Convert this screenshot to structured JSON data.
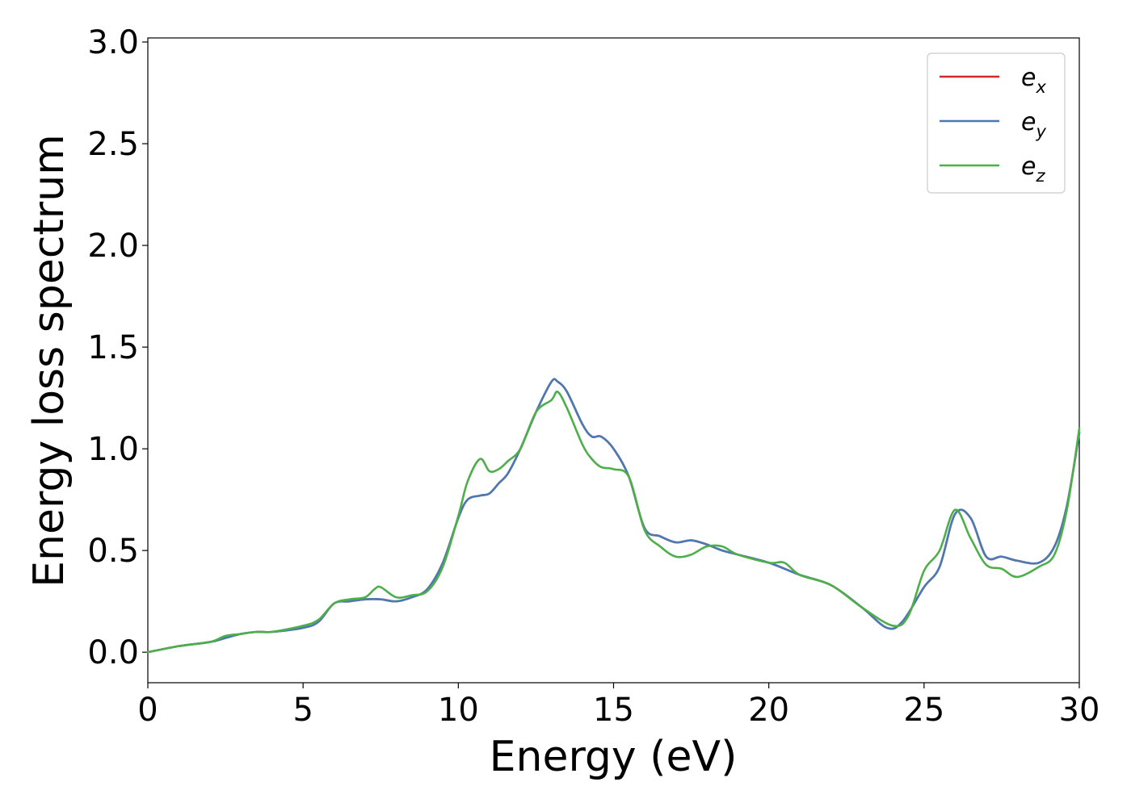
{
  "chart_data": {
    "type": "line",
    "title": "",
    "xlabel": "Energy (eV)",
    "ylabel": "Energy loss spectrum",
    "xlim": [
      0,
      30
    ],
    "ylim": [
      -0.15,
      3.02
    ],
    "xticks": [
      "0",
      "5",
      "10",
      "15",
      "20",
      "25",
      "30"
    ],
    "yticks": [
      "0.0",
      "0.5",
      "1.0",
      "1.5",
      "2.0",
      "2.5",
      "3.0"
    ],
    "grid": false,
    "legend_position": "top-right",
    "series": [
      {
        "name": "e_x",
        "legend_base": "e",
        "legend_sub": "x",
        "color": "#d62728",
        "x": [
          0,
          1,
          2,
          2.5,
          3,
          3.5,
          4,
          5,
          5.5,
          6,
          6.5,
          7,
          7.5,
          8,
          8.5,
          9,
          9.5,
          10,
          10.3,
          10.7,
          11,
          11.3,
          11.6,
          12,
          12.5,
          13,
          13.2,
          13.5,
          14,
          14.3,
          14.6,
          15,
          15.5,
          16,
          16.5,
          17,
          17.5,
          18,
          18.5,
          19,
          20,
          21,
          22,
          23,
          23.8,
          24.3,
          25,
          25.5,
          26,
          26.5,
          27,
          27.5,
          28,
          28.7,
          29.2,
          29.6,
          30
        ],
        "y": [
          0,
          0.03,
          0.05,
          0.07,
          0.09,
          0.1,
          0.1,
          0.12,
          0.15,
          0.24,
          0.25,
          0.26,
          0.26,
          0.25,
          0.27,
          0.31,
          0.44,
          0.66,
          0.75,
          0.77,
          0.78,
          0.83,
          0.88,
          1.0,
          1.18,
          1.33,
          1.33,
          1.28,
          1.12,
          1.06,
          1.06,
          1.0,
          0.86,
          0.61,
          0.57,
          0.54,
          0.55,
          0.53,
          0.5,
          0.48,
          0.44,
          0.38,
          0.33,
          0.22,
          0.12,
          0.15,
          0.32,
          0.42,
          0.68,
          0.66,
          0.47,
          0.47,
          0.45,
          0.44,
          0.52,
          0.72,
          1.08
        ]
      },
      {
        "name": "e_y",
        "legend_base": "e",
        "legend_sub": "y",
        "color": "#4a7ab5",
        "x": [
          0,
          1,
          2,
          2.5,
          3,
          3.5,
          4,
          5,
          5.5,
          6,
          6.5,
          7,
          7.5,
          8,
          8.5,
          9,
          9.5,
          10,
          10.3,
          10.7,
          11,
          11.3,
          11.6,
          12,
          12.5,
          13,
          13.2,
          13.5,
          14,
          14.3,
          14.6,
          15,
          15.5,
          16,
          16.5,
          17,
          17.5,
          18,
          18.5,
          19,
          20,
          21,
          22,
          23,
          23.8,
          24.3,
          25,
          25.5,
          26,
          26.5,
          27,
          27.5,
          28,
          28.7,
          29.2,
          29.6,
          30
        ],
        "y": [
          0,
          0.03,
          0.05,
          0.07,
          0.09,
          0.1,
          0.1,
          0.12,
          0.15,
          0.24,
          0.25,
          0.26,
          0.26,
          0.25,
          0.27,
          0.31,
          0.44,
          0.66,
          0.75,
          0.77,
          0.78,
          0.83,
          0.88,
          1.0,
          1.18,
          1.33,
          1.33,
          1.28,
          1.12,
          1.06,
          1.06,
          1.0,
          0.86,
          0.61,
          0.57,
          0.54,
          0.55,
          0.53,
          0.5,
          0.48,
          0.44,
          0.38,
          0.33,
          0.22,
          0.12,
          0.15,
          0.32,
          0.42,
          0.68,
          0.66,
          0.47,
          0.47,
          0.45,
          0.44,
          0.52,
          0.72,
          1.08
        ]
      },
      {
        "name": "e_z",
        "legend_base": "e",
        "legend_sub": "z",
        "color": "#4daf4a",
        "x": [
          0,
          1,
          2,
          2.5,
          3,
          3.5,
          4,
          5,
          5.5,
          6,
          6.5,
          7,
          7.3,
          7.5,
          8,
          8.5,
          9,
          9.5,
          10,
          10.3,
          10.7,
          11,
          11.3,
          11.6,
          12,
          12.5,
          13,
          13.2,
          13.5,
          14,
          14.3,
          14.6,
          15,
          15.5,
          16,
          16.5,
          17,
          17.5,
          18,
          18.5,
          19,
          20,
          20.5,
          21,
          22,
          23,
          24,
          24.5,
          25,
          25.5,
          26,
          26.5,
          27,
          27.5,
          28,
          28.7,
          29.2,
          29.6,
          30
        ],
        "y": [
          0,
          0.03,
          0.05,
          0.08,
          0.09,
          0.1,
          0.1,
          0.13,
          0.16,
          0.24,
          0.26,
          0.27,
          0.31,
          0.32,
          0.27,
          0.28,
          0.3,
          0.42,
          0.67,
          0.84,
          0.95,
          0.89,
          0.9,
          0.94,
          1.0,
          1.18,
          1.24,
          1.28,
          1.2,
          1.02,
          0.95,
          0.91,
          0.9,
          0.86,
          0.6,
          0.52,
          0.47,
          0.48,
          0.52,
          0.52,
          0.48,
          0.44,
          0.44,
          0.38,
          0.33,
          0.22,
          0.13,
          0.18,
          0.4,
          0.5,
          0.7,
          0.56,
          0.43,
          0.41,
          0.37,
          0.42,
          0.48,
          0.7,
          1.1
        ]
      }
    ]
  }
}
